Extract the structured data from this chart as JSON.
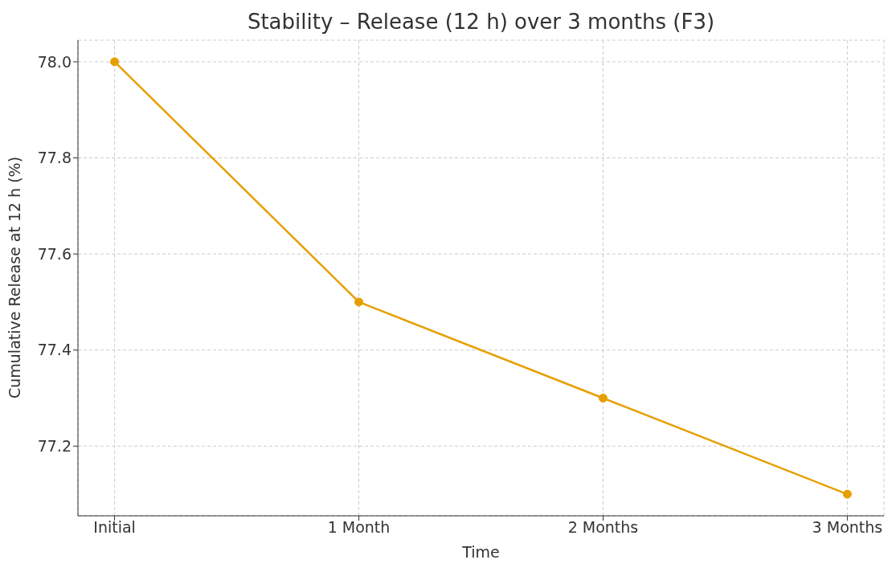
{
  "chart_data": {
    "type": "line",
    "title": "Stability – Release (12 h) over 3 months (F3)",
    "xlabel": "Time",
    "ylabel": "Cumulative Release at 12 h (%)",
    "categories": [
      "Initial",
      "1 Month",
      "2 Months",
      "3 Months"
    ],
    "series": [
      {
        "color": "#e69f00",
        "values": [
          78.0,
          77.5,
          77.3,
          77.1
        ]
      }
    ],
    "ylim": [
      77.055,
      78.045
    ],
    "yticks": [
      77.2,
      77.4,
      77.6,
      77.8,
      {
        "value": 78.0,
        "label": "78.0"
      }
    ],
    "grid": true,
    "marker": "circle",
    "line_style": "solid"
  }
}
